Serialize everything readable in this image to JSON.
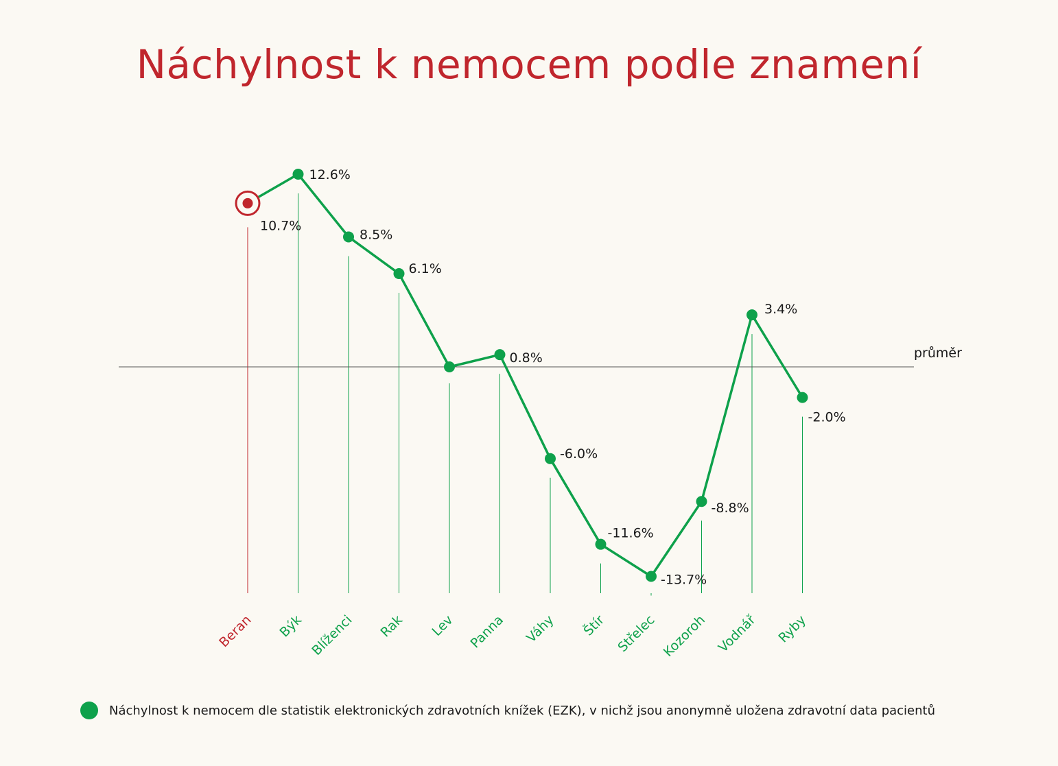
{
  "title": "Náchylnost k nemocem podle znamení",
  "average_label": "průměr",
  "legend": {
    "text": "Náchylnost k nemocem dle statistik elektronických zdravotních knížek (EZK), v nichž jsou anonymně uložena zdravotní data pacientů"
  },
  "colors": {
    "series": "#0ea14b",
    "highlight": "#c0262d",
    "title": "#c0262d",
    "axis": "#555555",
    "text": "#1a1a1a",
    "background": "#fbf9f3"
  },
  "chart_data": {
    "type": "line",
    "title": "Náchylnost k nemocem podle znamení",
    "categories": [
      "Beran",
      "Býk",
      "Blíženci",
      "Rak",
      "Lev",
      "Panna",
      "Váhy",
      "Štír",
      "Střelec",
      "Kozoroh",
      "Vodnář",
      "Ryby"
    ],
    "series": [
      {
        "values": [
          10.7,
          12.6,
          8.5,
          6.1,
          0.0,
          0.8,
          -6.0,
          -11.6,
          -13.7,
          -8.8,
          3.4,
          -2.0
        ],
        "labels": [
          "10.7%",
          "12.6%",
          "8.5%",
          "6.1%",
          "",
          "0.8%",
          "-6.0%",
          "-11.6%",
          "-13.7%",
          "-8.8%",
          "3.4%",
          "-2.0%"
        ]
      }
    ],
    "highlighted_category": "Beran",
    "reference_line": {
      "value": 0,
      "label": "průměr"
    },
    "ylim": [
      -14.5,
      14
    ],
    "grid": false
  }
}
